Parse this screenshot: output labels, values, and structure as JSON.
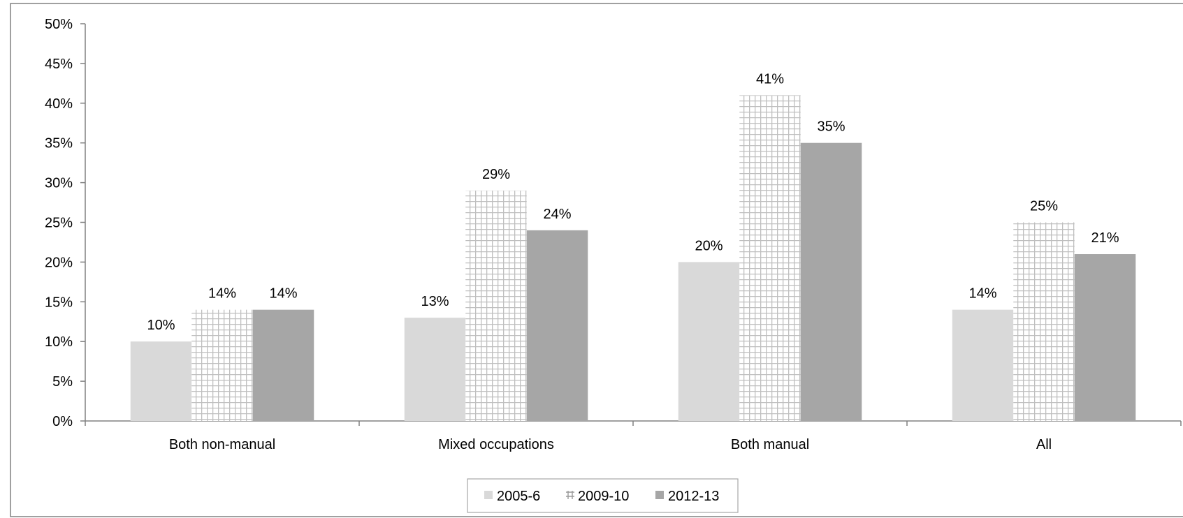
{
  "chart_data": {
    "type": "bar",
    "title": "",
    "xlabel": "",
    "ylabel": "",
    "categories": [
      "Both non-manual",
      "Mixed occupations",
      "Both manual",
      "All"
    ],
    "series": [
      {
        "name": "2005-6",
        "values": [
          10,
          13,
          20,
          14
        ],
        "labels": [
          "10%",
          "13%",
          "20%",
          "14%"
        ],
        "fill": "solid-light"
      },
      {
        "name": "2009-10",
        "values": [
          14,
          29,
          41,
          25
        ],
        "labels": [
          "14%",
          "29%",
          "41%",
          "25%"
        ],
        "fill": "grid-pattern"
      },
      {
        "name": "2012-13",
        "values": [
          14,
          24,
          35,
          21
        ],
        "labels": [
          "14%",
          "24%",
          "35%",
          "21%"
        ],
        "fill": "solid-dark"
      }
    ],
    "ylim": [
      0,
      50
    ],
    "yticks": [
      0,
      5,
      10,
      15,
      20,
      25,
      30,
      35,
      40,
      45,
      50
    ],
    "ytick_labels": [
      "0%",
      "5%",
      "10%",
      "15%",
      "20%",
      "25%",
      "30%",
      "35%",
      "40%",
      "45%",
      "50%"
    ],
    "grid": false,
    "legend_position": "bottom"
  },
  "colors": {
    "light": "#d9d9d9",
    "dark": "#a6a6a6",
    "grid_line": "#bfbfbf",
    "axis": "#808080",
    "frame": "#808080"
  }
}
